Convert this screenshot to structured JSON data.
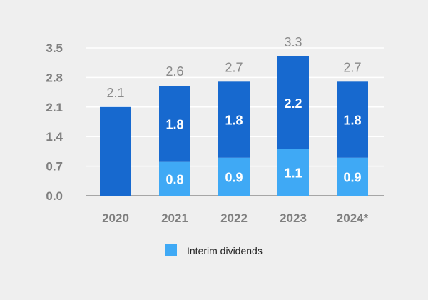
{
  "chart_data": {
    "type": "bar",
    "stacked": true,
    "categories": [
      "2020",
      "2021",
      "2022",
      "2023",
      "2024*"
    ],
    "series": [
      {
        "name": "Interim dividends",
        "values": [
          null,
          0.8,
          0.9,
          1.1,
          0.9
        ],
        "color": "#3fa9f5"
      },
      {
        "values": [
          2.1,
          1.8,
          1.8,
          2.2,
          1.8
        ],
        "color": "#1769cf"
      }
    ],
    "totals": [
      "2.1",
      "2.6",
      "2.7",
      "3.3",
      "2.7"
    ],
    "segment_labels": {
      "lower": [
        "",
        "0.8",
        "0.9",
        "1.1",
        "0.9"
      ],
      "upper": [
        "",
        "1.8",
        "1.8",
        "2.2",
        "1.8"
      ]
    },
    "y_ticks": [
      "0.0",
      "0.7",
      "1.4",
      "2.1",
      "2.8",
      "3.5"
    ],
    "ylim": [
      0,
      3.5
    ],
    "grid": true,
    "legend_position": "bottom-center",
    "colors": {
      "background": "#efefef",
      "grid": "#ffffff",
      "baseline": "#a6a6a6"
    }
  }
}
